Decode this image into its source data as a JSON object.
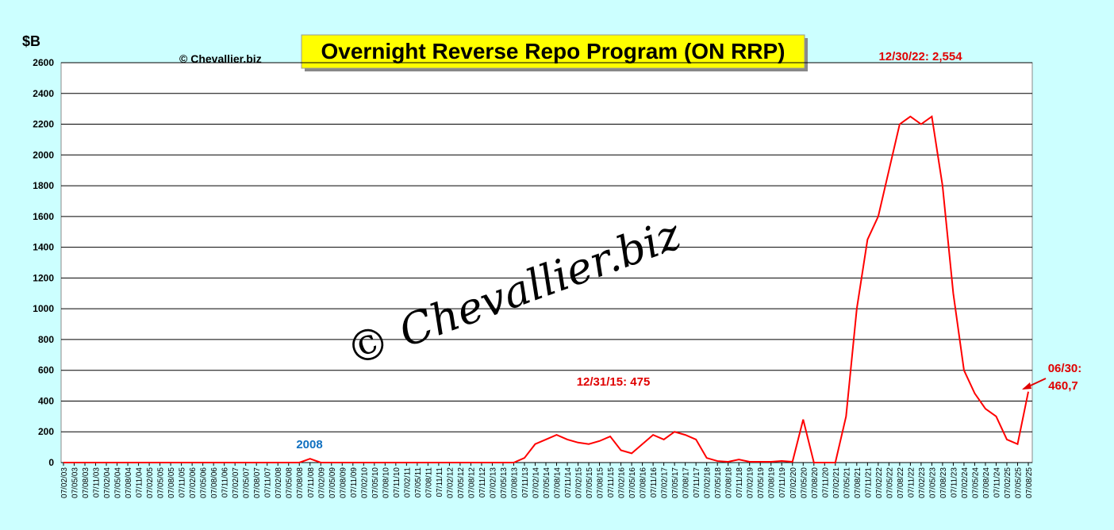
{
  "chart_data": {
    "type": "line",
    "title": "Overnight Reverse Repo Program (ON RRP)",
    "y_label": "$B",
    "credit": "© Chevallier.biz",
    "watermark": "© Chevallier.biz",
    "annotations": [
      "12/30/22: 2,554",
      "12/31/15: 475",
      "2008",
      "06/30:",
      "460,7"
    ],
    "categories": [
      "07/02/03",
      "07/05/03",
      "07/08/03",
      "07/11/03",
      "07/02/04",
      "07/05/04",
      "07/08/04",
      "07/11/04",
      "07/02/05",
      "07/05/05",
      "07/08/05",
      "07/11/05",
      "07/02/06",
      "07/05/06",
      "07/08/06",
      "07/11/06",
      "07/02/07",
      "07/05/07",
      "07/08/07",
      "07/11/07",
      "07/02/08",
      "07/05/08",
      "07/08/08",
      "07/11/08",
      "07/02/09",
      "07/05/09",
      "07/08/09",
      "07/11/09",
      "07/02/10",
      "07/05/10",
      "07/08/10",
      "07/11/10",
      "07/02/11",
      "07/05/11",
      "07/08/11",
      "07/11/11",
      "07/02/12",
      "07/05/12",
      "07/08/12",
      "07/11/12",
      "07/02/13",
      "07/05/13",
      "07/08/13",
      "07/11/13",
      "07/02/14",
      "07/05/14",
      "07/08/14",
      "07/11/14",
      "07/02/15",
      "07/05/15",
      "07/08/15",
      "07/11/15",
      "07/02/16",
      "07/05/16",
      "07/08/16",
      "07/11/16",
      "07/02/17",
      "07/05/17",
      "07/08/17",
      "07/11/17",
      "07/02/18",
      "07/05/18",
      "07/08/18",
      "07/11/18",
      "07/02/19",
      "07/05/19",
      "07/08/19",
      "07/11/19",
      "07/02/20",
      "07/05/20",
      "07/08/20",
      "07/11/20",
      "07/02/21",
      "07/05/21",
      "07/08/21",
      "07/11/21",
      "07/02/22",
      "07/05/22",
      "07/08/22",
      "07/11/22",
      "07/02/23",
      "07/05/23",
      "07/08/23",
      "07/11/23",
      "07/02/24",
      "07/05/24",
      "07/08/24",
      "07/11/24",
      "07/02/25",
      "07/05/25",
      "07/08/25"
    ],
    "series": [
      {
        "name": "ON RRP",
        "color": "#ff0000",
        "values": [
          0,
          0,
          0,
          0,
          0,
          0,
          0,
          0,
          0,
          0,
          0,
          0,
          0,
          0,
          0,
          0,
          0,
          0,
          0,
          0,
          0,
          0,
          0,
          25,
          0,
          0,
          0,
          0,
          0,
          0,
          0,
          0,
          0,
          0,
          0,
          0,
          0,
          0,
          0,
          0,
          0,
          0,
          0,
          30,
          120,
          150,
          180,
          150,
          130,
          120,
          140,
          170,
          80,
          60,
          120,
          180,
          150,
          200,
          180,
          150,
          30,
          10,
          5,
          20,
          5,
          5,
          5,
          10,
          5,
          280,
          0,
          0,
          0,
          300,
          1000,
          1450,
          1600,
          1900,
          2200,
          2250,
          2200,
          2250,
          1800,
          1100,
          600,
          450,
          350,
          300,
          150,
          120,
          460.7
        ]
      }
    ],
    "ylim": [
      0,
      2600
    ],
    "yticks": [
      0,
      200,
      400,
      600,
      800,
      1000,
      1200,
      1400,
      1600,
      1800,
      2000,
      2200,
      2400,
      2600
    ],
    "grid": true
  }
}
